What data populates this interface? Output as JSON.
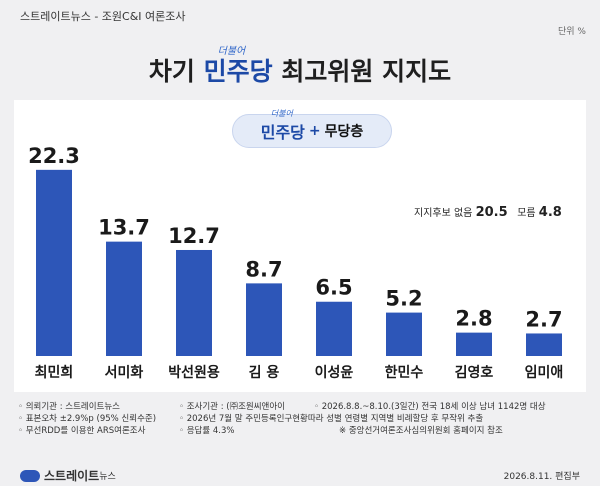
{
  "header": {
    "source": "스트레이트뉴스 - 조원C&I 여론조사",
    "unit": "단위 %"
  },
  "title": {
    "prefix": "차기 ",
    "party": "민주당",
    "party_script": "더불어",
    "suffix": " 최고위원 지지도"
  },
  "subtitle": {
    "party": "민주당",
    "party_script": "더불어",
    "plus": "+",
    "rest": "무당층"
  },
  "note": {
    "no_candidate_label": "지지후보 없음",
    "no_candidate_value": "20.5",
    "dont_know_label": "모름",
    "dont_know_value": "4.8"
  },
  "chart_data": {
    "type": "bar",
    "categories": [
      "최민희",
      "서미화",
      "박선원용",
      "김 용",
      "이성윤",
      "한민수",
      "김영호",
      "임미애"
    ],
    "values": [
      22.3,
      13.7,
      12.7,
      8.7,
      6.5,
      5.2,
      2.8,
      2.7
    ],
    "value_labels": [
      "22.3",
      "13.7",
      "12.7",
      "8.7",
      "6.5",
      "5.2",
      "2.8",
      "2.7"
    ],
    "ylim": [
      0,
      23
    ],
    "bar_color": "#2d56b8",
    "grid": false
  },
  "footer": {
    "client": "◦ 의뢰기관 : 스트레이트뉴스",
    "agency": "◦ 조사기관 : (㈜조원씨앤아이",
    "period": "◦ 2026.8.8.~8.10.(3일간) 전국 18세 이상 남녀 1142명 대상",
    "margin": "◦ 표본오차 ±2.9%p (95% 신뢰수준)",
    "weighting": "◦ 2026년 7월 말 주민등록인구현황따라 성별 연령별 지역별 비례할당 후 무작위 추출",
    "method": "◦ 무선RDD를 이용한 ARS여론조사",
    "response": "◦ 응답률 4.3%",
    "reference": "※ 중앙선거여론조사심의위원회 홈페이지 참조"
  },
  "brand": {
    "logo_main": "스트레이트",
    "logo_small": "뉴스"
  },
  "date_line": "2026.8.11. 편집부"
}
